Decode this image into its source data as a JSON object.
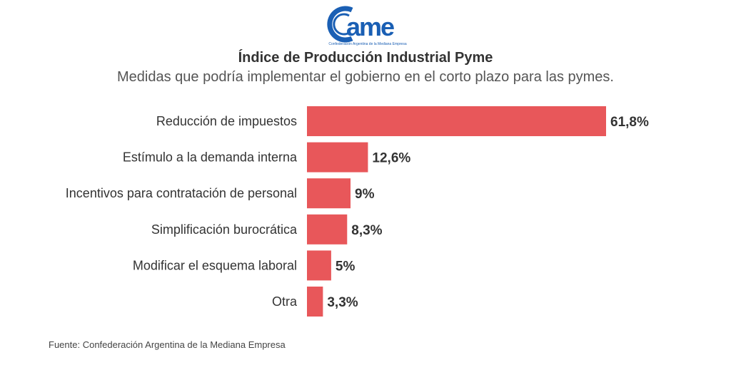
{
  "logo": {
    "text": "came",
    "tagline": "Confederación Argentina de la Mediana Empresa",
    "color": "#1a5fb4"
  },
  "chart_data": {
    "type": "bar",
    "orientation": "horizontal",
    "title": "Índice de Producción Industrial Pyme",
    "subtitle": "Medidas que podría implementar el gobierno en el corto plazo para las pymes.",
    "categories": [
      "Reducción de impuestos",
      "Estímulo a la demanda interna",
      "Incentivos para contratación de personal",
      "Simplificación burocrática",
      "Modificar el esquema laboral",
      "Otra"
    ],
    "values": [
      61.8,
      12.6,
      9,
      8.3,
      5,
      3.3
    ],
    "labels": [
      "61,8%",
      "12,6%",
      "9%",
      "8,3%",
      "5%",
      "3,3%"
    ],
    "unit": "%",
    "bar_color": "#e8575a",
    "grid": false
  },
  "source": "Fuente: Confederación Argentina de la Mediana Empresa"
}
